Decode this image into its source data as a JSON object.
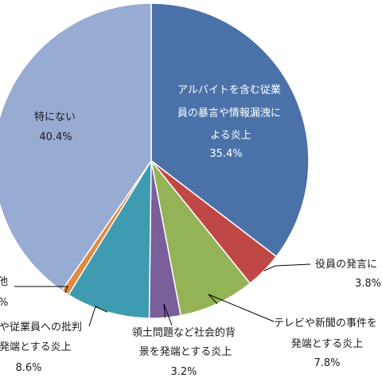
{
  "chart_data": {
    "type": "pie",
    "slices": [
      {
        "label": "アルバイトを含む従業員の暴言や情報漏洩による炎上",
        "label_lines": [
          "アルバイトを含む従業",
          "員の暴言や情報漏洩に",
          "よる炎上"
        ],
        "value": 35.4,
        "value_text": "35.4%",
        "color": "#4a72a8"
      },
      {
        "label": "役員の発言に…",
        "label_lines": [
          "役員の発言に"
        ],
        "value": 3.8,
        "value_text": "3.8%",
        "color": "#bf4846"
      },
      {
        "label": "テレビや新聞の事件を発端とする炎上",
        "label_lines": [
          "テレビや新聞の事件を",
          "発端とする炎上"
        ],
        "value": 7.8,
        "value_text": "7.8%",
        "color": "#94b356"
      },
      {
        "label": "領土問題など社会的背景を発端とする炎上",
        "label_lines": [
          "領土問題など社会的背",
          "景を発端とする炎上"
        ],
        "value": 3.2,
        "value_text": "3.2%",
        "color": "#7a5f9b"
      },
      {
        "label": "…や従業員への批判を発端とする炎上",
        "label_lines": [
          "や従業員への批判",
          "発端とする炎上"
        ],
        "value": 8.6,
        "value_text": "8.6%",
        "color": "#3f9bb0"
      },
      {
        "label": "…他",
        "label_lines": [
          "他"
        ],
        "value": 0.8,
        "value_text": "%",
        "color": "#e08a3e"
      },
      {
        "label": "特にない",
        "label_lines": [
          "特にない"
        ],
        "value": 40.4,
        "value_text": "40.4%",
        "color": "#98abd2"
      }
    ]
  }
}
